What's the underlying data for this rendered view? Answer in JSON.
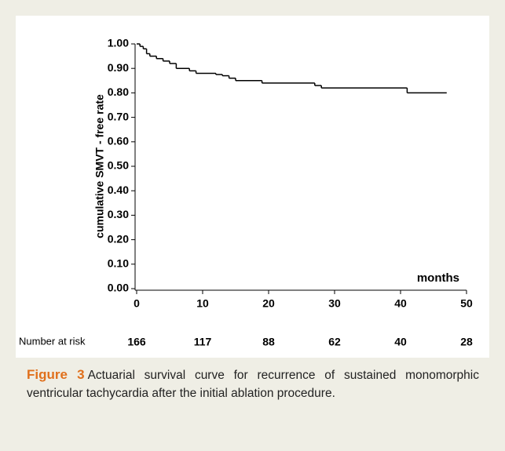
{
  "chart_data": {
    "type": "line",
    "step": true,
    "y_label": "cumulative SMVT - free rate",
    "annotation": "months",
    "x": [
      0,
      0.5,
      1,
      1.5,
      2,
      3,
      4,
      5,
      6,
      8,
      9,
      12,
      13,
      14,
      15,
      19,
      27,
      28,
      41,
      47
    ],
    "series": [
      {
        "color": "#000000",
        "values": [
          1.0,
          0.99,
          0.98,
          0.96,
          0.95,
          0.94,
          0.93,
          0.92,
          0.9,
          0.89,
          0.88,
          0.875,
          0.87,
          0.86,
          0.85,
          0.84,
          0.83,
          0.82,
          0.8,
          0.8
        ]
      }
    ],
    "xlim": [
      0,
      50
    ],
    "xticks": [
      0,
      10,
      20,
      30,
      40,
      50
    ],
    "ylim": [
      0,
      1
    ],
    "yticks": [
      {
        "value": 0,
        "label": "0.00"
      },
      {
        "value": 0.1,
        "label": "0.10"
      },
      {
        "value": 0.2,
        "label": "0.20"
      },
      {
        "value": 0.3,
        "label": "0.30"
      },
      {
        "value": 0.4,
        "label": "0.40"
      },
      {
        "value": 0.5,
        "label": "0.50"
      },
      {
        "value": 0.6,
        "label": "0.60"
      },
      {
        "value": 0.7,
        "label": "0.70"
      },
      {
        "value": 0.8,
        "label": "0.80"
      },
      {
        "value": 0.9,
        "label": "0.90"
      },
      {
        "value": 1,
        "label": "1.00"
      }
    ],
    "risk_table": {
      "label": "Number at risk",
      "values": [
        166,
        117,
        88,
        62,
        40,
        28
      ]
    }
  },
  "caption": {
    "label": "Figure 3",
    "text": "Actuarial survival curve for recurrence of sustained monomorphic ventricular tachycardia after the initial ablation procedure."
  }
}
